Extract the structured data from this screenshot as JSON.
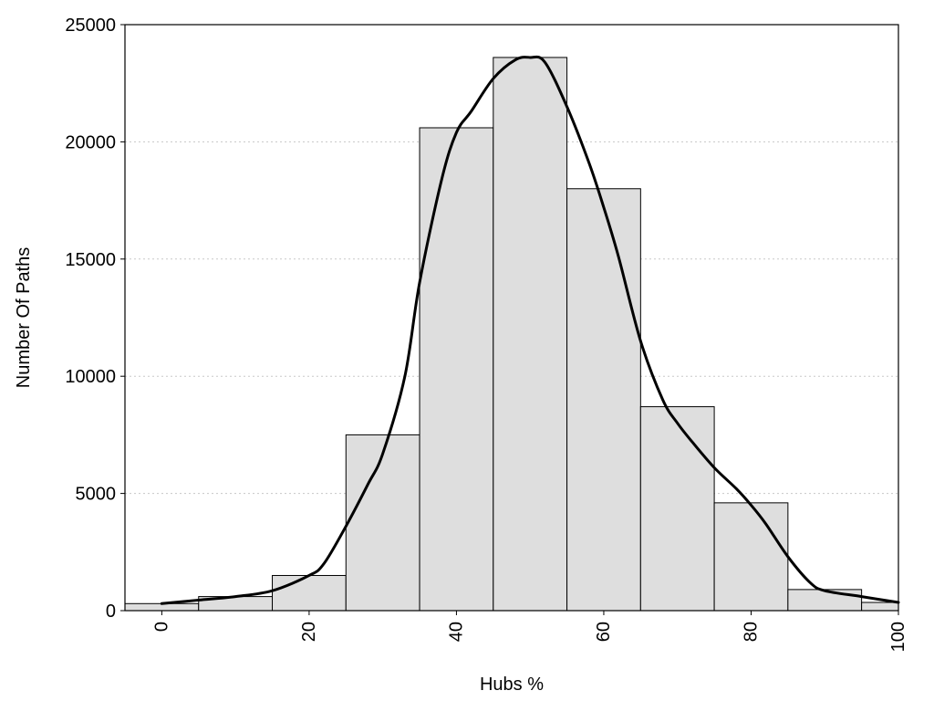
{
  "chart_data": {
    "type": "bar",
    "xlabel": "Hubs %",
    "ylabel": "Number Of Paths",
    "xlim": [
      -5,
      100
    ],
    "ylim": [
      0,
      25000
    ],
    "x_ticks": [
      0,
      20,
      40,
      60,
      80,
      100
    ],
    "y_ticks": [
      0,
      5000,
      10000,
      15000,
      20000,
      25000
    ],
    "grid": "horizontal-dotted",
    "bin_width": 10,
    "bins": [
      {
        "start": -5,
        "end": 5,
        "value": 300
      },
      {
        "start": 5,
        "end": 15,
        "value": 600
      },
      {
        "start": 15,
        "end": 25,
        "value": 1500
      },
      {
        "start": 25,
        "end": 35,
        "value": 7500
      },
      {
        "start": 35,
        "end": 45,
        "value": 20600
      },
      {
        "start": 45,
        "end": 55,
        "value": 23600
      },
      {
        "start": 55,
        "end": 65,
        "value": 18000
      },
      {
        "start": 65,
        "end": 75,
        "value": 8700
      },
      {
        "start": 75,
        "end": 85,
        "value": 4600
      },
      {
        "start": 85,
        "end": 95,
        "value": 900
      },
      {
        "start": 95,
        "end": 100,
        "value": 350
      }
    ],
    "density_curve": {
      "x": [
        0,
        5,
        10,
        15,
        20,
        22,
        25,
        28,
        30,
        33,
        35,
        38,
        40,
        42,
        45,
        48,
        50,
        52,
        55,
        58,
        60,
        62,
        65,
        68,
        70,
        72,
        75,
        78,
        80,
        82,
        85,
        88,
        90,
        95,
        100
      ],
      "y": [
        300,
        450,
        600,
        850,
        1500,
        2000,
        3600,
        5400,
        6700,
        10000,
        14000,
        18400,
        20400,
        21300,
        22700,
        23500,
        23600,
        23400,
        21500,
        19100,
        17200,
        15100,
        11500,
        9000,
        8000,
        7200,
        6100,
        5200,
        4500,
        3700,
        2300,
        1200,
        850,
        600,
        350
      ]
    },
    "colors": {
      "bar_fill": "#dedede",
      "bar_stroke": "#000000",
      "curve": "#000000",
      "grid": "#c8c8c8"
    }
  }
}
